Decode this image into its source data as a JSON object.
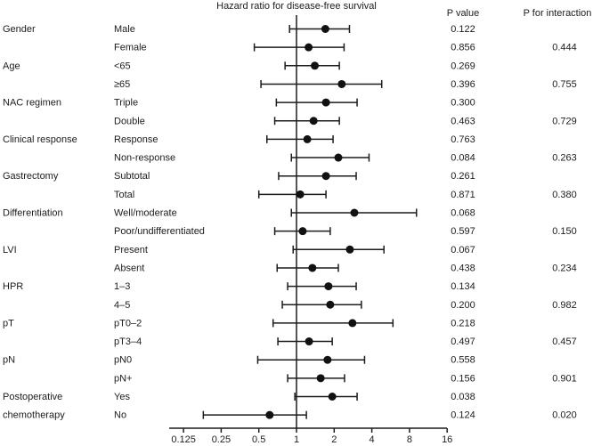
{
  "figure": {
    "title": "Hazard ratio for disease-free survival",
    "p_value_header": "P value",
    "p_interaction_header": "P for interaction"
  },
  "chart_data": {
    "type": "scatter",
    "subtype": "forest-plot",
    "title": "Hazard ratio for disease-free survival",
    "x_scale": "log2",
    "x_ticks": [
      0.125,
      0.25,
      0.5,
      1,
      2,
      4,
      8,
      16
    ],
    "x_tick_labels": [
      "0.125",
      "0.25",
      "0.5",
      "1",
      "2",
      "4",
      "8",
      "16"
    ],
    "reference_line": 1,
    "x_range": [
      0.125,
      16
    ],
    "legend": "none",
    "grid": false,
    "columns": {
      "p_value": "P value",
      "p_interaction": "P for interaction"
    },
    "rows": [
      {
        "group": "Gender",
        "subgroup": "Male",
        "hr": 1.7,
        "ci_low": 0.88,
        "ci_high": 2.65,
        "p_value": "0.122",
        "p_interaction": ""
      },
      {
        "group": "",
        "subgroup": "Female",
        "hr": 1.25,
        "ci_low": 0.46,
        "ci_high": 2.4,
        "p_value": "0.856",
        "p_interaction": "0.444"
      },
      {
        "group": "Age",
        "subgroup": "<65",
        "hr": 1.4,
        "ci_low": 0.81,
        "ci_high": 2.2,
        "p_value": "0.269",
        "p_interaction": ""
      },
      {
        "group": "",
        "subgroup": "≥65",
        "hr": 2.3,
        "ci_low": 0.52,
        "ci_high": 4.8,
        "p_value": "0.396",
        "p_interaction": "0.755"
      },
      {
        "group": "NAC regimen",
        "subgroup": "Triple",
        "hr": 1.72,
        "ci_low": 0.69,
        "ci_high": 3.05,
        "p_value": "0.300",
        "p_interaction": ""
      },
      {
        "group": "",
        "subgroup": "Double",
        "hr": 1.37,
        "ci_low": 0.67,
        "ci_high": 2.2,
        "p_value": "0.463",
        "p_interaction": "0.729"
      },
      {
        "group": "Clinical response",
        "subgroup": "Response",
        "hr": 1.22,
        "ci_low": 0.58,
        "ci_high": 1.96,
        "p_value": "0.763",
        "p_interaction": ""
      },
      {
        "group": "",
        "subgroup": "Non-response",
        "hr": 2.16,
        "ci_low": 0.91,
        "ci_high": 3.8,
        "p_value": "0.084",
        "p_interaction": "0.263"
      },
      {
        "group": "Gastrectomy",
        "subgroup": "Subtotal",
        "hr": 1.72,
        "ci_low": 0.72,
        "ci_high": 3.0,
        "p_value": "0.261",
        "p_interaction": ""
      },
      {
        "group": "",
        "subgroup": "Total",
        "hr": 1.07,
        "ci_low": 0.5,
        "ci_high": 1.72,
        "p_value": "0.871",
        "p_interaction": "0.380"
      },
      {
        "group": "Differentiation",
        "subgroup": "Well/moderate",
        "hr": 2.9,
        "ci_low": 0.91,
        "ci_high": 9.1,
        "p_value": "0.068",
        "p_interaction": ""
      },
      {
        "group": "",
        "subgroup": "Poor/undifferentiated",
        "hr": 1.12,
        "ci_low": 0.67,
        "ci_high": 1.86,
        "p_value": "0.597",
        "p_interaction": "0.150"
      },
      {
        "group": "LVI",
        "subgroup": "Present",
        "hr": 2.67,
        "ci_low": 0.94,
        "ci_high": 5.0,
        "p_value": "0.067",
        "p_interaction": ""
      },
      {
        "group": "",
        "subgroup": "Absent",
        "hr": 1.34,
        "ci_low": 0.7,
        "ci_high": 2.16,
        "p_value": "0.438",
        "p_interaction": "0.234"
      },
      {
        "group": "HPR",
        "subgroup": "1–3",
        "hr": 1.8,
        "ci_low": 0.85,
        "ci_high": 3.0,
        "p_value": "0.134",
        "p_interaction": ""
      },
      {
        "group": "",
        "subgroup": "4–5",
        "hr": 1.86,
        "ci_low": 0.77,
        "ci_high": 3.3,
        "p_value": "0.200",
        "p_interaction": "0.982"
      },
      {
        "group": "pT",
        "subgroup": "pT0–2",
        "hr": 2.8,
        "ci_low": 0.65,
        "ci_high": 5.9,
        "p_value": "0.218",
        "p_interaction": ""
      },
      {
        "group": "",
        "subgroup": "pT3–4",
        "hr": 1.26,
        "ci_low": 0.71,
        "ci_high": 1.93,
        "p_value": "0.497",
        "p_interaction": "0.457"
      },
      {
        "group": "pN",
        "subgroup": "pN0",
        "hr": 1.77,
        "ci_low": 0.49,
        "ci_high": 3.5,
        "p_value": "0.558",
        "p_interaction": ""
      },
      {
        "group": "",
        "subgroup": "pN+",
        "hr": 1.56,
        "ci_low": 0.85,
        "ci_high": 2.42,
        "p_value": "0.156",
        "p_interaction": "0.901"
      },
      {
        "group": "Postoperative",
        "subgroup": "Yes",
        "hr": 1.93,
        "ci_low": 0.97,
        "ci_high": 3.05,
        "p_value": "0.038",
        "p_interaction": ""
      },
      {
        "group": "chemotherapy",
        "subgroup": "No",
        "hr": 0.61,
        "ci_low": 0.18,
        "ci_high": 1.2,
        "p_value": "0.124",
        "p_interaction": "0.020"
      }
    ]
  }
}
